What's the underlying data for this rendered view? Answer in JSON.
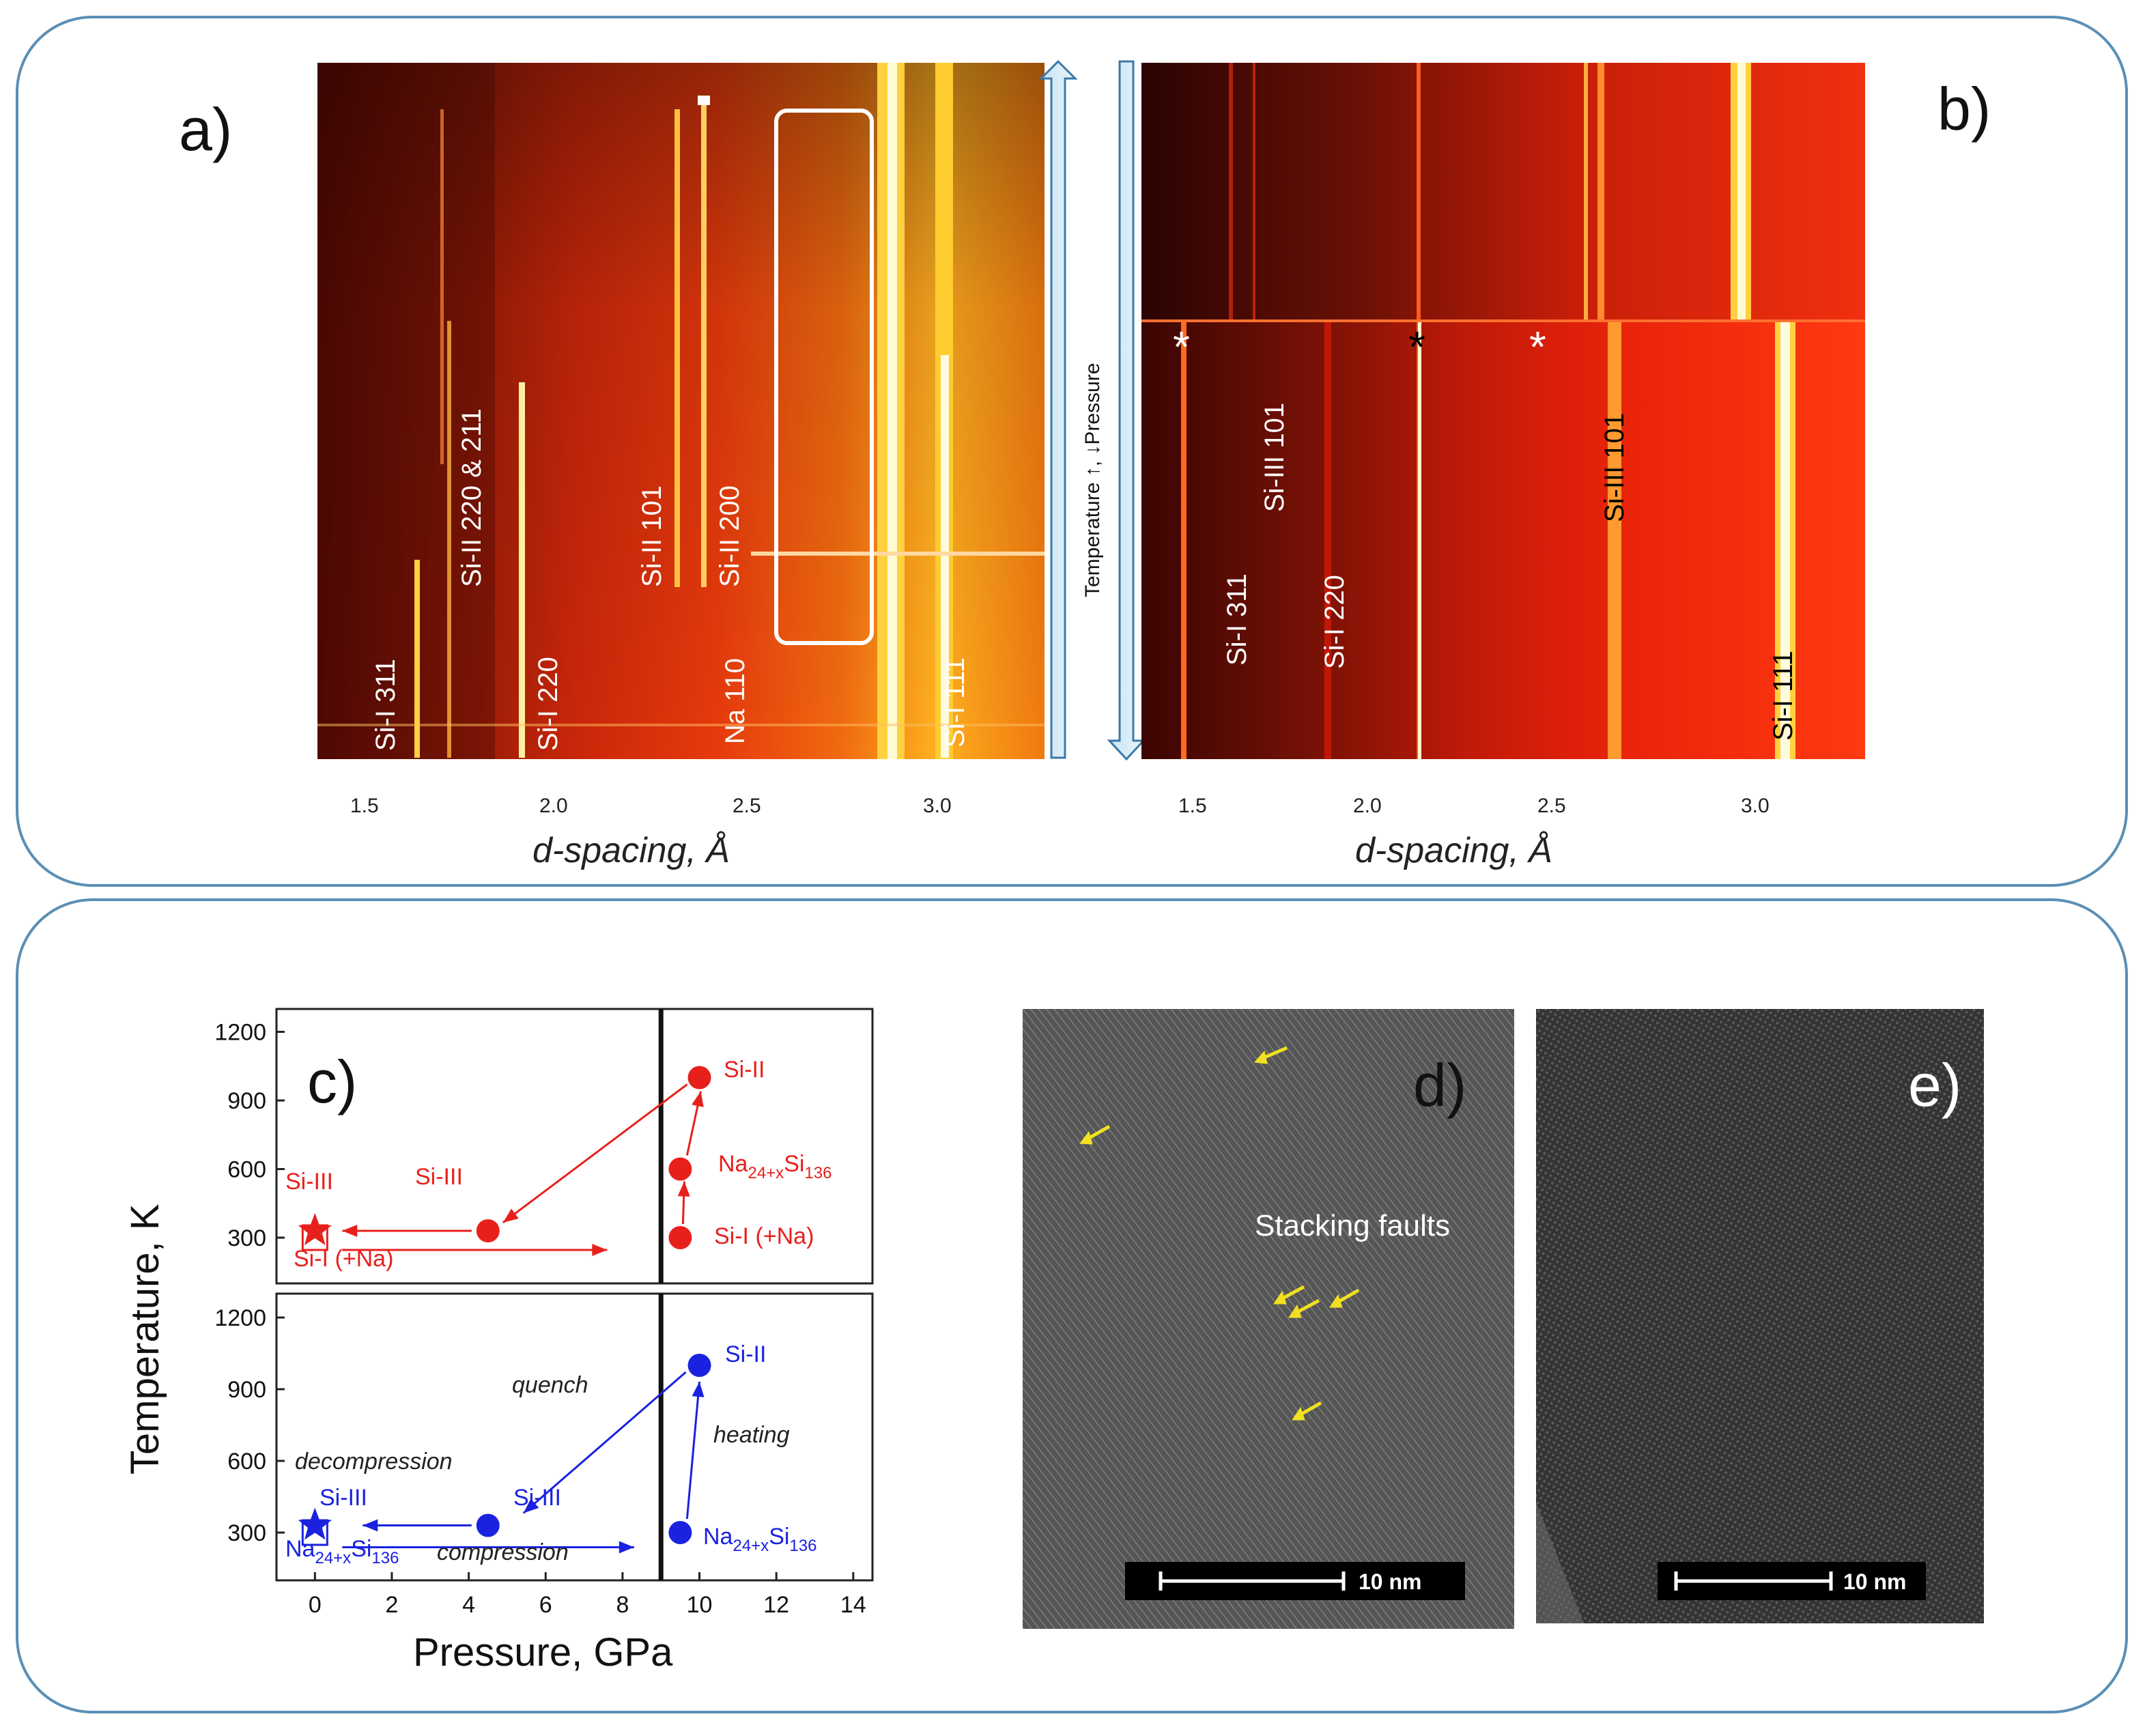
{
  "panel_a": {
    "letter": "a)",
    "axis_title": "d-spacing, Å",
    "ticks": [
      "1.5",
      "2.0",
      "2.5",
      "3.0"
    ],
    "labels": [
      "Si-I 311",
      "Si-II 220 & 211",
      "Si-I 220",
      "Si-II 101",
      "Si-II 200",
      "Na 110",
      "Si-I 111"
    ]
  },
  "panel_b": {
    "letter": "b)",
    "axis_title": "d-spacing, Å",
    "ticks": [
      "1.5",
      "2.0",
      "2.5",
      "3.0"
    ],
    "labels": [
      "Si-I 311",
      "Si-III 101",
      "Si-I 220",
      "Si-III 101",
      "Si-I 111"
    ],
    "markers": [
      "*",
      "*",
      "*"
    ]
  },
  "arrow_label": "Temperature ↑, ↓Pressure",
  "chart_data": {
    "type": "scatter",
    "title": "c)",
    "xlabel": "Pressure, GPa",
    "ylabel": "Temperature, K",
    "xlim": [
      -1,
      14.5
    ],
    "ylim": [
      100,
      1300
    ],
    "x_ticks": [
      "0",
      "2",
      "4",
      "6",
      "8",
      "10",
      "12",
      "14"
    ],
    "y_ticks": [
      "300",
      "600",
      "900",
      "1200"
    ],
    "boundary_x": 9,
    "panels": [
      {
        "name": "top",
        "color": "#e8201c",
        "points": [
          {
            "x": 10,
            "y": 1000,
            "label": "Si-II",
            "marker": "circle"
          },
          {
            "x": 9.5,
            "y": 600,
            "label": "Na24+xSi136",
            "marker": "circle"
          },
          {
            "x": 9.5,
            "y": 300,
            "label": "Si-I (+Na)",
            "marker": "circle"
          },
          {
            "x": 4.5,
            "y": 330,
            "label": "Si-III",
            "marker": "circle"
          },
          {
            "x": 0,
            "y": 330,
            "label": "Si-III",
            "marker": "star"
          },
          {
            "x": 0,
            "y": 300,
            "label": "Si-I (+Na)",
            "marker": "square"
          }
        ]
      },
      {
        "name": "bottom",
        "color": "#1a22e0",
        "points": [
          {
            "x": 10,
            "y": 1000,
            "label": "Si-II",
            "marker": "circle"
          },
          {
            "x": 9.5,
            "y": 300,
            "label": "Na24+xSi136",
            "marker": "circle"
          },
          {
            "x": 4.5,
            "y": 330,
            "label": "Si-III",
            "marker": "circle"
          },
          {
            "x": 0,
            "y": 330,
            "label": "Si-III",
            "marker": "star"
          },
          {
            "x": 0,
            "y": 300,
            "label": "Na24+xSi136",
            "marker": "square"
          }
        ],
        "annotations": [
          "quench",
          "heating",
          "decompression",
          "compression"
        ]
      }
    ]
  },
  "c_text": {
    "si_ii": "Si-II",
    "si_iii": "Si-III",
    "si_i_na": "Si-I (+Na)",
    "na": "Na",
    "sub_24x": "24+x",
    "si": "Si",
    "sub_136": "136",
    "quench": "quench",
    "heating": "heating",
    "decompression": "decompression",
    "compression": "compression"
  },
  "panel_d": {
    "letter": "d)",
    "caption": "Stacking faults",
    "scale_bar": "10 nm"
  },
  "panel_e": {
    "letter": "e)",
    "scale_bar": "10 nm"
  },
  "colors": {
    "frame": "#5b8fb5",
    "red": "#e8201c",
    "blue": "#1a22e0",
    "yellow_arrow": "#f0e020"
  }
}
